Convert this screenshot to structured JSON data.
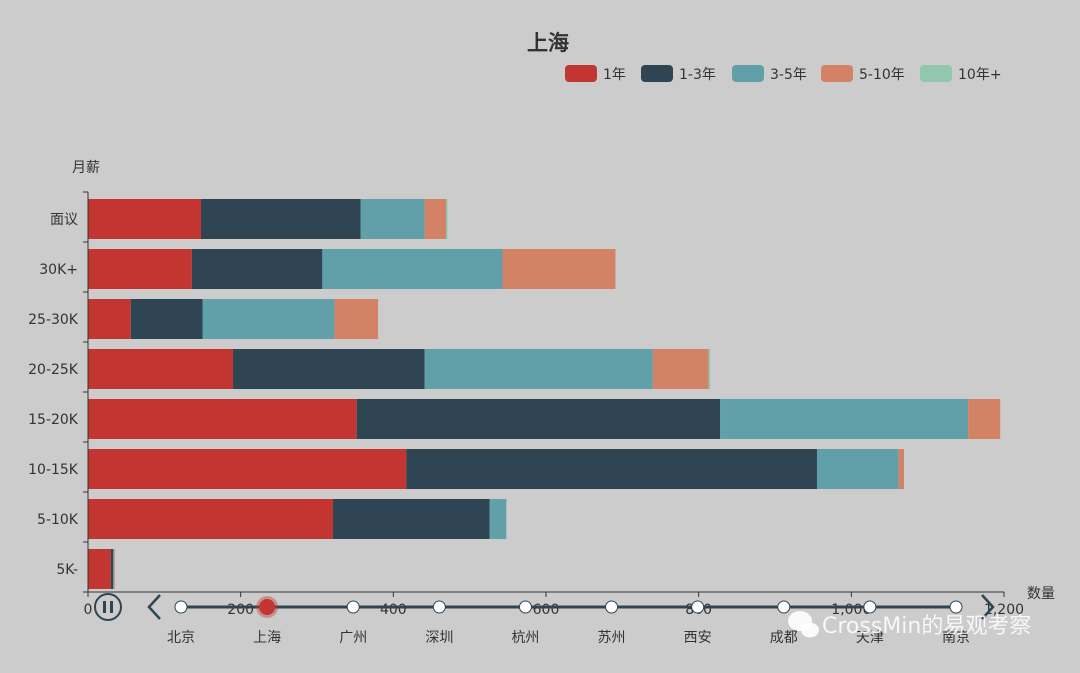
{
  "chart_data": {
    "type": "bar",
    "orientation": "horizontal",
    "stacked": true,
    "title": "上海",
    "ylabel": "月薪",
    "xlabel": "数量",
    "xlim": [
      0,
      1200
    ],
    "x_ticks": [
      "0",
      "200",
      "400",
      "600",
      "800",
      "1,000",
      "1,200"
    ],
    "categories": [
      "面议",
      "30K+",
      "25-30K",
      "20-25K",
      "15-20K",
      "10-15K",
      "5-10K",
      "5K-"
    ],
    "series": [
      {
        "name": "1年",
        "color": "#c23531",
        "values": [
          148,
          136,
          56,
          190,
          352,
          417,
          321,
          30
        ]
      },
      {
        "name": "1-3年",
        "color": "#2f4554",
        "values": [
          209,
          171,
          94,
          251,
          476,
          538,
          205,
          3
        ]
      },
      {
        "name": "3-5年",
        "color": "#61a0a8",
        "values": [
          84,
          236,
          173,
          299,
          325,
          107,
          22,
          1
        ]
      },
      {
        "name": "5-10年",
        "color": "#d48265",
        "values": [
          28,
          148,
          57,
          73,
          42,
          7,
          0,
          1
        ]
      },
      {
        "name": "10年+",
        "color": "#91c7ae",
        "values": [
          2,
          0,
          0,
          2,
          0,
          0,
          0,
          0
        ]
      }
    ],
    "legend_position": "top-right"
  },
  "timeline": {
    "cities": [
      "北京",
      "上海",
      "广州",
      "深圳",
      "杭州",
      "苏州",
      "西安",
      "成都",
      "天津",
      "南京"
    ],
    "current_index": 1,
    "play_icon": "pause-icon",
    "prev_icon": "chevron-left-icon",
    "next_icon": "chevron-right-icon"
  },
  "watermark": {
    "text": "CrossMin的易观考察",
    "icon": "wechat-icon"
  }
}
